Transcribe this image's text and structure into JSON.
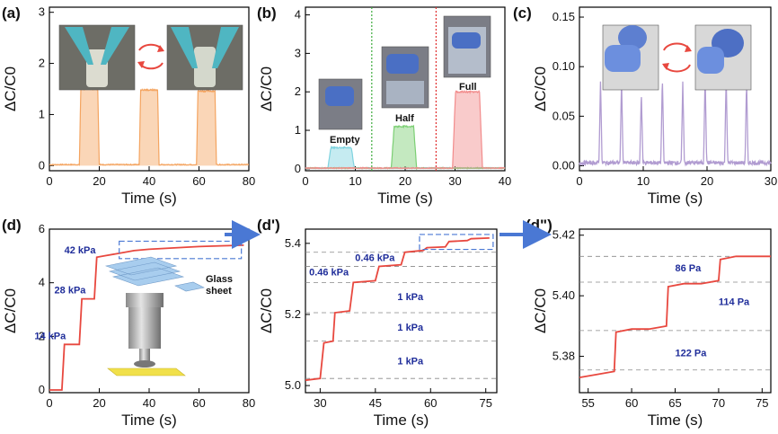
{
  "colors": {
    "orange": "#f4a460",
    "cyan": "#7fd3df",
    "green": "#7ccf74",
    "pink": "#f28c8c",
    "purple": "#b19cd1",
    "red": "#e8483f",
    "annot_blue": "#1f2d9a",
    "arrow_blue": "#4a78d4",
    "dash_blue": "#4a78d4",
    "dash_green": "#3cab3c",
    "dash_red": "#e03030",
    "grid_dash": "#888888"
  },
  "panels": {
    "a": {
      "label": "(a)"
    },
    "b": {
      "label": "(b)",
      "photo_labels": [
        "Empty",
        "Half",
        "Full"
      ]
    },
    "c": {
      "label": "(c)"
    },
    "d": {
      "label": "(d)",
      "annotations": [
        "42 kPa",
        "28 kPa",
        "14 kPa"
      ],
      "inset_label": "Glass sheet"
    },
    "d1": {
      "label": "(d')",
      "annotations": [
        "0.46 kPa",
        "0.46 kPa",
        "1 kPa",
        "1 kPa",
        "1 kPa"
      ]
    },
    "d2": {
      "label": "(d\")",
      "annotations": [
        "86 Pa",
        "114 Pa",
        "122 Pa"
      ]
    }
  },
  "chart_data": [
    {
      "id": "a",
      "type": "area",
      "xlabel": "Time (s)",
      "ylabel": "ΔC/C0",
      "xlim": [
        0,
        80
      ],
      "ylim": [
        -0.1,
        3.1
      ],
      "xticks": [
        0,
        20,
        40,
        60,
        80
      ],
      "yticks": [
        0,
        1,
        2,
        3
      ],
      "series": [
        {
          "color": "#f4a460",
          "pulses": [
            [
              12,
              20,
              1.5
            ],
            [
              36,
              44,
              1.48
            ],
            [
              59,
              67,
              1.46
            ]
          ],
          "baseline": 0.02
        }
      ]
    },
    {
      "id": "b",
      "type": "area",
      "xlabel": "Time (s)",
      "ylabel": "ΔC/C0",
      "xlim": [
        0,
        40
      ],
      "ylim": [
        -0.05,
        4.2
      ],
      "xticks": [
        0,
        10,
        20,
        30,
        40
      ],
      "yticks": [
        0,
        1,
        2,
        3,
        4
      ],
      "series": [
        {
          "color": "#7fd3df",
          "pulses": [
            [
              4.5,
              9.8,
              0.55
            ]
          ],
          "baseline": 0.02
        },
        {
          "color": "#7ccf74",
          "pulses": [
            [
              17.2,
              22.3,
              1.1
            ]
          ],
          "baseline": 0.02
        },
        {
          "color": "#f28c8c",
          "pulses": [
            [
              29.5,
              35.5,
              2.0
            ]
          ],
          "baseline": 0.02
        }
      ],
      "vlines": [
        {
          "x": 13.3,
          "color": "#3cab3c"
        },
        {
          "x": 26.2,
          "color": "#e03030"
        }
      ]
    },
    {
      "id": "c",
      "type": "line",
      "xlabel": "Time (s)",
      "ylabel": "ΔC/C0",
      "xlim": [
        0,
        30
      ],
      "ylim": [
        -0.005,
        0.16
      ],
      "xticks": [
        0,
        10,
        20,
        30
      ],
      "yticks": [
        0.0,
        0.05,
        0.1,
        0.15
      ],
      "series": [
        {
          "color": "#b19cd1",
          "spikes": [
            [
              3.3,
              0.085
            ],
            [
              6.6,
              0.085
            ],
            [
              9.7,
              0.075
            ],
            [
              13.0,
              0.09
            ],
            [
              16.2,
              0.085
            ],
            [
              19.7,
              0.09
            ],
            [
              23.0,
              0.09
            ],
            [
              26.2,
              0.085
            ]
          ],
          "baseline": 0.003
        }
      ]
    },
    {
      "id": "d",
      "type": "line",
      "xlabel": "Time (s)",
      "ylabel": "ΔC/C0",
      "xlim": [
        0,
        80
      ],
      "ylim": [
        -0.1,
        6.0
      ],
      "xticks": [
        0,
        20,
        40,
        60,
        80
      ],
      "yticks": [
        0,
        2,
        4,
        6
      ],
      "series": [
        {
          "color": "#e8483f",
          "x": [
            0,
            5,
            6,
            12,
            13,
            18,
            19,
            22,
            28,
            34,
            40,
            50,
            60,
            70,
            78
          ],
          "y": [
            0,
            0,
            1.7,
            1.7,
            3.4,
            3.4,
            4.95,
            5.0,
            5.1,
            5.2,
            5.25,
            5.3,
            5.35,
            5.38,
            5.4
          ]
        }
      ]
    },
    {
      "id": "d1",
      "type": "line",
      "xlabel": "Time (s)",
      "ylabel": "ΔC/C0",
      "xlim": [
        26,
        78
      ],
      "ylim": [
        4.98,
        5.44
      ],
      "xticks": [
        30,
        45,
        60,
        75
      ],
      "yticks": [
        5.0,
        5.2,
        5.4
      ],
      "hlines": [
        5.02,
        5.125,
        5.205,
        5.29,
        5.335,
        5.375
      ],
      "series": [
        {
          "color": "#e8483f",
          "x": [
            26,
            30,
            31,
            33.5,
            34,
            38,
            39,
            45,
            46,
            52,
            53,
            58,
            59,
            64,
            65,
            70,
            71,
            76
          ],
          "y": [
            5.015,
            5.02,
            5.12,
            5.125,
            5.205,
            5.21,
            5.29,
            5.295,
            5.335,
            5.34,
            5.375,
            5.38,
            5.388,
            5.39,
            5.405,
            5.408,
            5.413,
            5.415
          ]
        }
      ]
    },
    {
      "id": "d2",
      "type": "line",
      "xlabel": "Time (s)",
      "ylabel": "ΔC/C0",
      "xlim": [
        54,
        76
      ],
      "ylim": [
        5.368,
        5.422
      ],
      "xticks": [
        55,
        60,
        65,
        70,
        75
      ],
      "yticks": [
        5.38,
        5.4,
        5.42
      ],
      "hlines": [
        5.3755,
        5.3885,
        5.4045,
        5.413
      ],
      "series": [
        {
          "color": "#e8483f",
          "x": [
            54,
            56,
            58,
            58.2,
            60,
            62,
            64,
            64.2,
            66,
            68,
            70,
            70.2,
            72,
            74,
            76
          ],
          "y": [
            5.373,
            5.374,
            5.375,
            5.388,
            5.389,
            5.389,
            5.39,
            5.403,
            5.404,
            5.404,
            5.405,
            5.412,
            5.413,
            5.413,
            5.413
          ]
        }
      ]
    }
  ]
}
